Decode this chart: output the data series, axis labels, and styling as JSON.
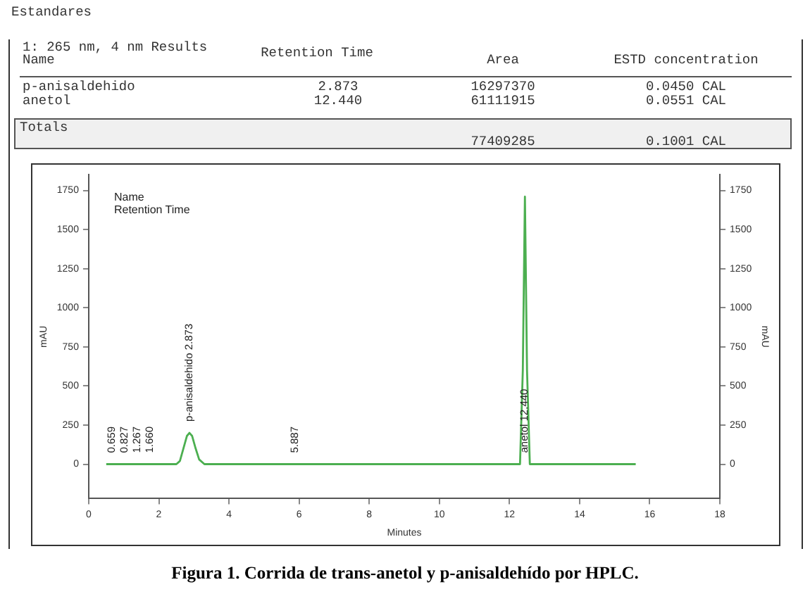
{
  "chart_data": {
    "type": "line",
    "xlabel": "Minutes",
    "ylabel": "mAU",
    "y2label": "mAU",
    "x": [
      0.5,
      2.5,
      2.6,
      2.7,
      2.8,
      2.873,
      2.95,
      3.05,
      3.15,
      3.3,
      12.3,
      12.38,
      12.44,
      12.5,
      12.58,
      15.6
    ],
    "series": [
      {
        "color": "#4caf50",
        "values": [
          0,
          0,
          20,
          100,
          180,
          200,
          180,
          100,
          30,
          0,
          0,
          600,
          1710,
          600,
          0,
          0
        ]
      }
    ],
    "xlim": [
      0,
      18
    ],
    "xticks": [
      0,
      2,
      4,
      6,
      8,
      10,
      12,
      14,
      16,
      18
    ],
    "ylim": [
      -220,
      1850
    ],
    "yticks": [
      0,
      250,
      500,
      750,
      1000,
      1250,
      1500,
      1750
    ],
    "y2lim": [
      -220,
      1850
    ],
    "y2ticks": [
      0,
      250,
      500,
      750,
      1000,
      1250,
      1500,
      1750
    ],
    "grid": false,
    "legend": false,
    "marker": "none",
    "line_style": "solid",
    "annotations": [
      "Estandares",
      "1: 265 nm, 4 nm Results",
      "Name",
      "Retention Time",
      "Area",
      "ESTD concentration",
      "p-anisaldehido",
      "2.873",
      "16297370",
      "0.0450 CAL",
      "anetol",
      "12.440",
      "61111915",
      "0.0551 CAL",
      "Totals",
      "77409285",
      "0.1001 CAL",
      "Name",
      "Retention Time",
      "Figura 1. Corrida de trans-anetol y p-anisaldehído por HPLC.",
      {
        "text": "0.659",
        "x": 0.659,
        "y": 0
      },
      {
        "text": "0.827",
        "x": 0.827,
        "y": 0
      },
      {
        "text": "1.267",
        "x": 1.267,
        "y": 0
      },
      {
        "text": "1.660",
        "x": 1.66,
        "y": 0
      },
      {
        "text": "p-anisaldehido 2.873",
        "x": 2.873,
        "y": 200
      },
      {
        "text": "5.887",
        "x": 5.887,
        "y": 0
      },
      {
        "text": "anetol 12.440",
        "x": 12.44,
        "y": 0
      }
    ]
  }
}
